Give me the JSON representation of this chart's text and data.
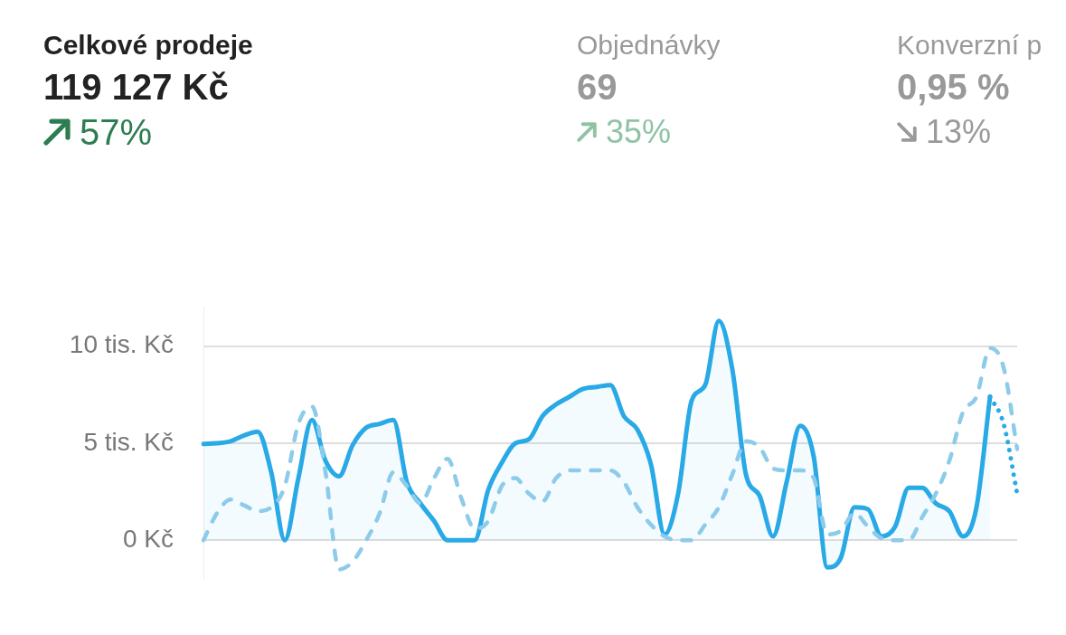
{
  "chart_data": [
    {
      "type": "line",
      "title": "Celkové prodeje",
      "subtitle": "119 127 Kč",
      "annotations": [
        "57%"
      ],
      "categories": [
        null,
        null,
        null,
        null,
        null,
        null,
        null,
        null,
        null,
        null,
        null,
        null,
        null,
        null,
        null,
        null,
        null,
        null,
        null,
        null,
        null,
        null,
        null,
        null,
        null,
        null,
        null,
        null,
        null,
        null,
        null,
        null,
        null,
        null,
        null,
        null,
        null,
        null,
        null,
        null,
        null,
        null,
        null,
        null,
        null,
        null,
        null,
        null,
        null,
        null,
        null,
        null,
        null,
        null,
        null,
        null,
        null,
        null,
        null,
        null,
        null
      ],
      "series": [
        {
          "type": "area",
          "color": "#29a9e6",
          "values": [
            4.96,
            5.0,
            5.1,
            5.4,
            5.6,
            3.5,
            0,
            3.2,
            6.2,
            4.1,
            3.3,
            4.9,
            5.8,
            6.0,
            6.2,
            3.0,
            1.9,
            1.0,
            0,
            0,
            0,
            2.6,
            4.0,
            5.0,
            5.2,
            6.4,
            7.0,
            7.4,
            7.8,
            7.9,
            8.0,
            6.4,
            5.7,
            3.9,
            0.3,
            2.4,
            7.2,
            8.0,
            11.3,
            8.8,
            3.4,
            2.3,
            0.2,
            3.0,
            5.9,
            4.3,
            -1.4,
            -0.9,
            1.7,
            1.6,
            0.2,
            0.7,
            2.7,
            2.7,
            1.9,
            1.5,
            0.2,
            1.7,
            7.4,
            null,
            null
          ]
        },
        {
          "type": "line",
          "color": "#8dcbea",
          "line_style": "dashed",
          "values": [
            0,
            1.4,
            2.1,
            1.8,
            1.5,
            1.7,
            2.8,
            6.0,
            6.9,
            3.5,
            -1.5,
            -1.1,
            0,
            1.4,
            3.5,
            2.8,
            1.9,
            3.2,
            4.2,
            2.2,
            0.6,
            1.0,
            2.8,
            3.2,
            2.4,
            2.0,
            3.2,
            3.6,
            3.6,
            3.6,
            3.6,
            3.0,
            1.7,
            0.8,
            0.2,
            0,
            0,
            0.8,
            1.7,
            3.4,
            5.1,
            4.8,
            3.7,
            3.6,
            3.6,
            3.2,
            0.3,
            0.5,
            1.4,
            0.7,
            0.1,
            0,
            0,
            1.2,
            2.4,
            4.1,
            6.6,
            7.4,
            9.9,
            8.9,
            4.7
          ]
        },
        {
          "type": "line",
          "color": "#29a9e6",
          "line_style": "dotted",
          "values": [
            null,
            null,
            null,
            null,
            null,
            null,
            null,
            null,
            null,
            null,
            null,
            null,
            null,
            null,
            null,
            null,
            null,
            null,
            null,
            null,
            null,
            null,
            null,
            null,
            null,
            null,
            null,
            null,
            null,
            null,
            null,
            null,
            null,
            null,
            null,
            null,
            null,
            null,
            null,
            null,
            null,
            null,
            null,
            null,
            null,
            null,
            null,
            null,
            null,
            null,
            null,
            null,
            null,
            null,
            null,
            null,
            null,
            null,
            7.4,
            6.0,
            2.4
          ]
        }
      ],
      "ylim": [
        -2,
        12
      ],
      "yticks": [
        {
          "value": 0,
          "label": "0 Kč"
        },
        {
          "value": 5,
          "label": "5 tis. Kč"
        },
        {
          "value": 10,
          "label": "10 tis. Kč"
        }
      ],
      "grid": "y",
      "legend": false,
      "tick_labels": "y"
    },
    {
      "type": "other",
      "title": "Objednávky",
      "subtitle": "69",
      "annotations": [
        "35%"
      ]
    },
    {
      "type": "other",
      "title": "Konverzní p",
      "subtitle": "0,95 %",
      "annotations": [
        "13%"
      ]
    }
  ]
}
